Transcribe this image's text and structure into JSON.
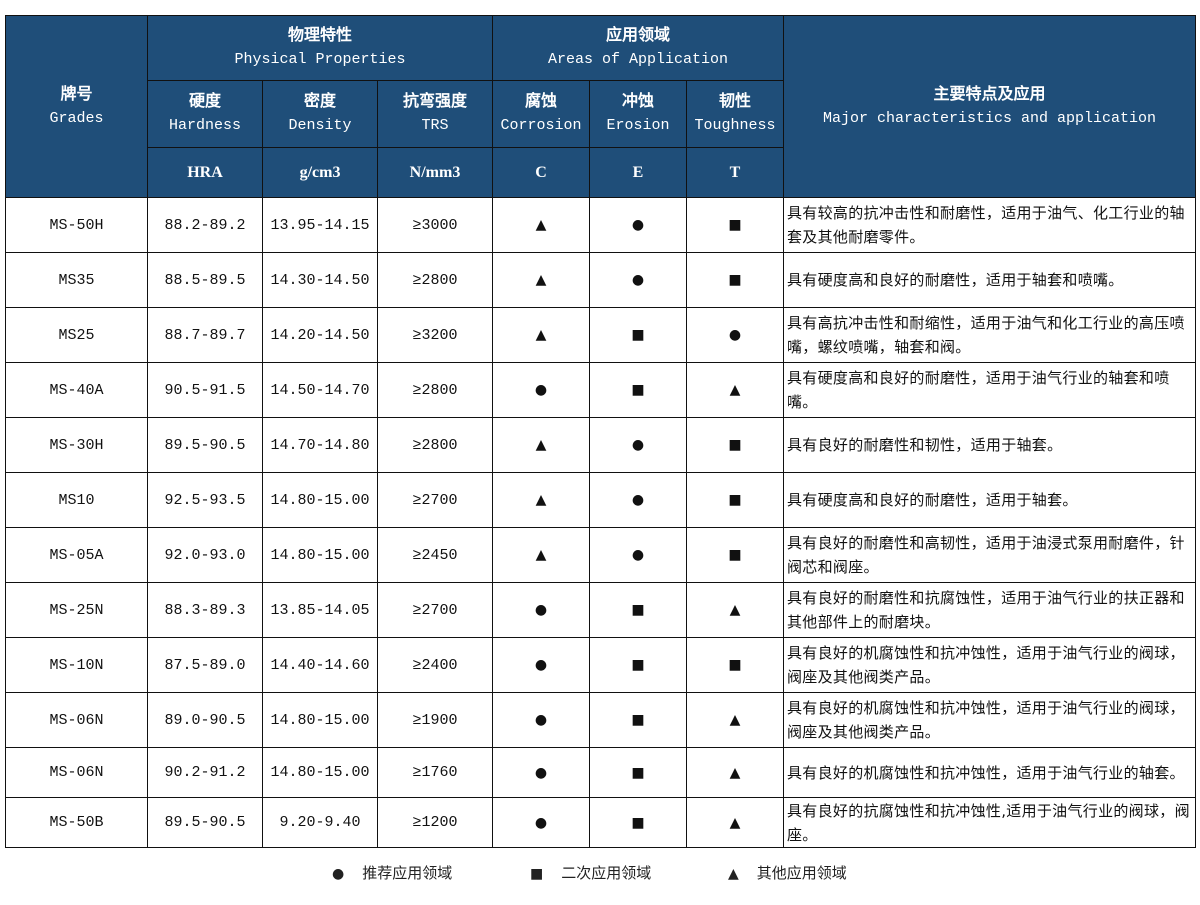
{
  "header": {
    "grade": {
      "zh": "牌号",
      "en": "Grades"
    },
    "physical": {
      "zh": "物理特性",
      "en": "Physical Properties"
    },
    "application": {
      "zh": "应用领域",
      "en": "Areas of Application"
    },
    "major": {
      "zh": "主要特点及应用",
      "en": "Major characteristics and application"
    },
    "hardness": {
      "zh": "硬度",
      "en": "Hardness",
      "unit": "HRA"
    },
    "density": {
      "zh": "密度",
      "en": "Density",
      "unit": "g/cm3"
    },
    "trs": {
      "zh": "抗弯强度",
      "en": "TRS",
      "unit": "N/mm3"
    },
    "corrosion": {
      "zh": "腐蚀",
      "en": "Corrosion",
      "unit": "C"
    },
    "erosion": {
      "zh": "冲蚀",
      "en": "Erosion",
      "unit": "E"
    },
    "toughness": {
      "zh": "韧性",
      "en": "Toughness",
      "unit": "T"
    }
  },
  "rows": [
    {
      "grade": "MS-50H",
      "hardness": "88.2-89.2",
      "density": "13.95-14.15",
      "trs": "≥3000",
      "c": "▲",
      "e": "●",
      "t": "■",
      "desc": "具有较高的抗冲击性和耐磨性，适用于油气、化工行业的轴套及其他耐磨零件。"
    },
    {
      "grade": "MS35",
      "hardness": "88.5-89.5",
      "density": "14.30-14.50",
      "trs": "≥2800",
      "c": "▲",
      "e": "●",
      "t": "■",
      "desc": "具有硬度高和良好的耐磨性，适用于轴套和喷嘴。"
    },
    {
      "grade": "MS25",
      "hardness": "88.7-89.7",
      "density": "14.20-14.50",
      "trs": "≥3200",
      "c": "▲",
      "e": "■",
      "t": "●",
      "desc": "具有高抗冲击性和耐缩性，适用于油气和化工行业的高压喷嘴，螺纹喷嘴，轴套和阀。"
    },
    {
      "grade": "MS-40A",
      "hardness": "90.5-91.5",
      "density": "14.50-14.70",
      "trs": "≥2800",
      "c": "●",
      "e": "■",
      "t": "▲",
      "desc": "具有硬度高和良好的耐磨性，适用于油气行业的轴套和喷嘴。"
    },
    {
      "grade": "MS-30H",
      "hardness": "89.5-90.5",
      "density": "14.70-14.80",
      "trs": "≥2800",
      "c": "▲",
      "e": "●",
      "t": "■",
      "desc": "具有良好的耐磨性和韧性，适用于轴套。"
    },
    {
      "grade": "MS10",
      "hardness": "92.5-93.5",
      "density": "14.80-15.00",
      "trs": "≥2700",
      "c": "▲",
      "e": "●",
      "t": "■",
      "desc": "具有硬度高和良好的耐磨性，适用于轴套。"
    },
    {
      "grade": "MS-05A",
      "hardness": "92.0-93.0",
      "density": "14.80-15.00",
      "trs": "≥2450",
      "c": "▲",
      "e": "●",
      "t": "■",
      "desc": "具有良好的耐磨性和高韧性，适用于油浸式泵用耐磨件，针阀芯和阀座。"
    },
    {
      "grade": "MS-25N",
      "hardness": "88.3-89.3",
      "density": "13.85-14.05",
      "trs": "≥2700",
      "c": "●",
      "e": "■",
      "t": "▲",
      "desc": "具有良好的耐磨性和抗腐蚀性，适用于油气行业的扶正器和其他部件上的耐磨块。"
    },
    {
      "grade": "MS-10N",
      "hardness": "87.5-89.0",
      "density": "14.40-14.60",
      "trs": "≥2400",
      "c": "●",
      "e": "■",
      "t": "■",
      "desc": "具有良好的机腐蚀性和抗冲蚀性，适用于油气行业的阀球，阀座及其他阀类产品。"
    },
    {
      "grade": "MS-06N",
      "hardness": "89.0-90.5",
      "density": "14.80-15.00",
      "trs": "≥1900",
      "c": "●",
      "e": "■",
      "t": "▲",
      "desc": "具有良好的机腐蚀性和抗冲蚀性，适用于油气行业的阀球，阀座及其他阀类产品。"
    },
    {
      "grade": "MS-06N",
      "hardness": "90.2-91.2",
      "density": "14.80-15.00",
      "trs": "≥1760",
      "c": "●",
      "e": "■",
      "t": "▲",
      "desc": "具有良好的机腐蚀性和抗冲蚀性，适用于油气行业的轴套。"
    },
    {
      "grade": "MS-50B",
      "hardness": "89.5-90.5",
      "density": "9.20-9.40",
      "trs": "≥1200",
      "c": "●",
      "e": "■",
      "t": "▲",
      "desc": "具有良好的抗腐蚀性和抗冲蚀性,适用于油气行业的阀球，阀座。"
    }
  ],
  "legend": [
    {
      "glyph": "●",
      "label": "推荐应用领域"
    },
    {
      "glyph": "■",
      "label": "二次应用领域"
    },
    {
      "glyph": "▲",
      "label": "其他应用领域"
    }
  ],
  "colors": {
    "header_bg": "#1f4e79",
    "header_text": "#ffffff"
  }
}
